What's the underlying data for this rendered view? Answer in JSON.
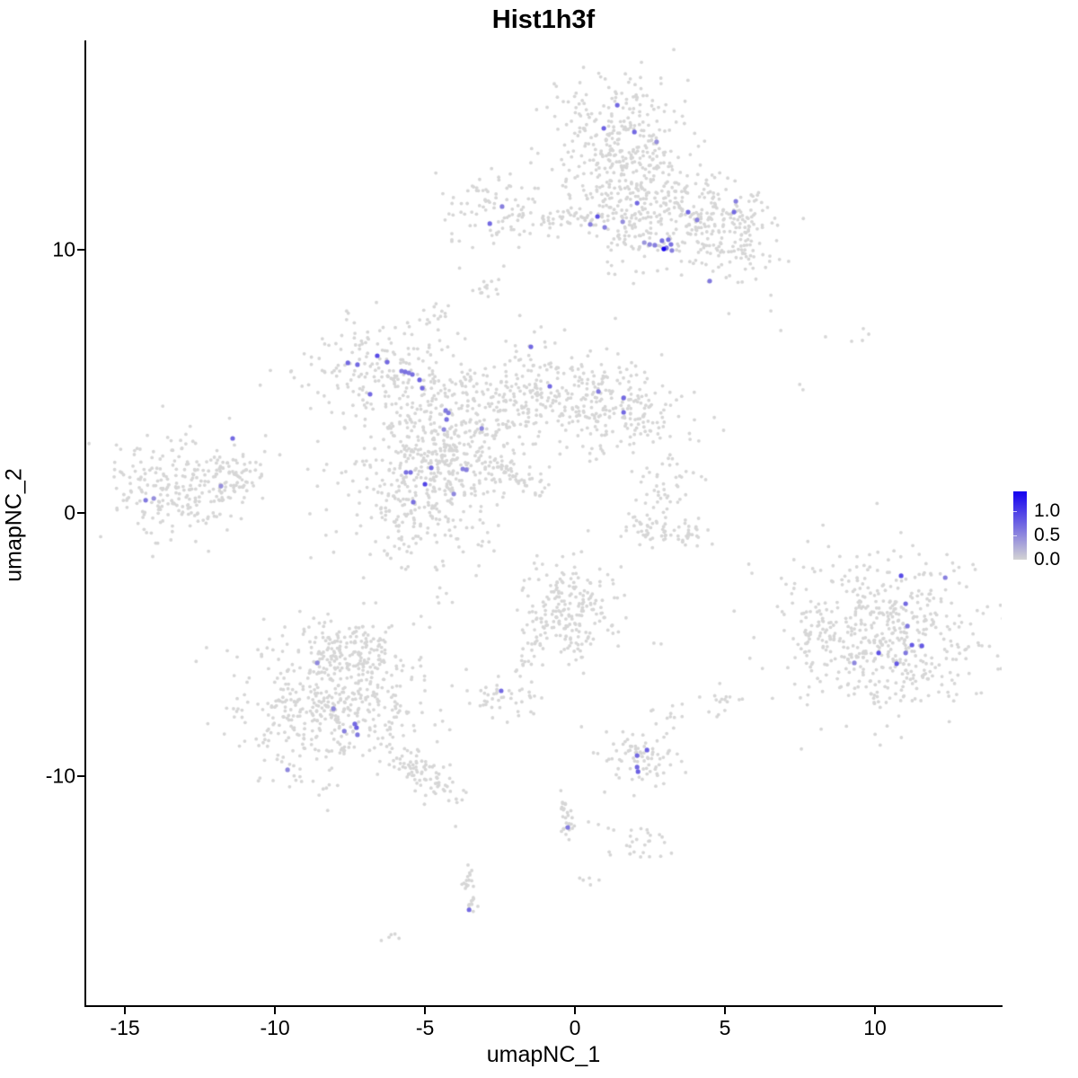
{
  "title": "Hist1h3f",
  "axes": {
    "x": {
      "label": "umapNC_1",
      "ticks": [
        -15,
        -10,
        -5,
        0,
        5,
        10
      ],
      "range": [
        -16.32,
        14.22
      ]
    },
    "y": {
      "label": "umapNC_2",
      "ticks": [
        -10,
        0,
        10
      ],
      "range": [
        -18.74,
        17.95
      ]
    }
  },
  "legend": {
    "tick_labels": [
      "1.0",
      "0.5",
      "0.0"
    ],
    "tick_values": [
      1.0,
      0.5,
      0.0
    ],
    "vmax": 1.4,
    "color_high": "#1400f0",
    "color_low": "#d3d3d3"
  },
  "chart_data": {
    "type": "scatter",
    "title": "Hist1h3f",
    "xlabel": "umapNC_1",
    "ylabel": "umapNC_2",
    "xlim": [
      -16.32,
      14.22
    ],
    "ylim": [
      -18.74,
      17.95
    ],
    "grid": false,
    "legend_position": "right",
    "background_color": "#d6d6d6",
    "point_radius_px": {
      "background": 1.9,
      "highlighted": 2.6
    },
    "gaussian_clusters": [
      {
        "name": "top-main",
        "cx": 1.4,
        "cy": 14.0,
        "sx": 1.1,
        "sy": 1.5,
        "n": 330
      },
      {
        "name": "top-neck",
        "cx": 1.9,
        "cy": 11.4,
        "sx": 0.85,
        "sy": 1.05,
        "n": 160
      },
      {
        "name": "top-arm-bulge",
        "cx": 5.0,
        "cy": 11.3,
        "sx": 0.85,
        "sy": 0.8,
        "n": 90
      },
      {
        "name": "upper-left-small",
        "cx": -2.45,
        "cy": 11.5,
        "sx": 1.0,
        "sy": 0.8,
        "n": 100
      },
      {
        "name": "below-upper-left",
        "cx": -2.87,
        "cy": 8.85,
        "sx": 0.28,
        "sy": 0.42,
        "n": 14
      },
      {
        "name": "mid-left-upper-lobe",
        "cx": -6.6,
        "cy": 5.3,
        "sx": 1.3,
        "sy": 0.95,
        "n": 190
      },
      {
        "name": "mid-central-node",
        "cx": -4.0,
        "cy": 3.1,
        "sx": 1.15,
        "sy": 1.4,
        "n": 260
      },
      {
        "name": "mid-right-arm-end",
        "cx": 1.85,
        "cy": 4.0,
        "sx": 1.1,
        "sy": 1.05,
        "n": 130
      },
      {
        "name": "mid-vertical-spur",
        "cx": -1.35,
        "cy": 5.3,
        "sx": 0.55,
        "sy": 0.95,
        "n": 55
      },
      {
        "name": "mid-bottom-lobe",
        "cx": -5.2,
        "cy": 0.6,
        "sx": 1.5,
        "sy": 1.55,
        "n": 290
      },
      {
        "name": "mid-connector",
        "cx": -4.6,
        "cy": 2.0,
        "sx": 0.75,
        "sy": 0.75,
        "n": 80
      },
      {
        "name": "mid-tiny-top",
        "cx": -4.6,
        "cy": 7.5,
        "sx": 0.3,
        "sy": 0.35,
        "n": 14
      },
      {
        "name": "far-left-main",
        "cx": -13.2,
        "cy": 1.05,
        "sx": 1.25,
        "sy": 1.05,
        "n": 240
      },
      {
        "name": "far-left-tip",
        "cx": -11.4,
        "cy": 1.35,
        "sx": 0.65,
        "sy": 0.5,
        "n": 55
      },
      {
        "name": "center-right-top",
        "cx": 3.0,
        "cy": 0.82,
        "sx": 0.55,
        "sy": 0.6,
        "n": 40
      },
      {
        "name": "bottom-right-main",
        "cx": 10.3,
        "cy": -4.6,
        "sx": 1.6,
        "sy": 1.5,
        "n": 520
      },
      {
        "name": "bottom-right-west",
        "cx": 7.87,
        "cy": -4.5,
        "sx": 0.4,
        "sy": 0.55,
        "n": 30
      },
      {
        "name": "bottom-left-main",
        "cx": -8.2,
        "cy": -7.3,
        "sx": 1.5,
        "sy": 1.4,
        "n": 480
      },
      {
        "name": "bottom-left-top-lobe",
        "cx": -7.5,
        "cy": -5.3,
        "sx": 0.85,
        "sy": 0.65,
        "n": 130
      },
      {
        "name": "center-bottom",
        "cx": -0.1,
        "cy": -3.7,
        "sx": 0.8,
        "sy": 1.0,
        "n": 210
      },
      {
        "name": "small-left-bottom",
        "cx": -2.45,
        "cy": -6.95,
        "sx": 0.55,
        "sy": 0.4,
        "n": 42
      },
      {
        "name": "small-mid-bottom",
        "cx": 2.25,
        "cy": -9.2,
        "sx": 0.75,
        "sy": 0.7,
        "n": 85
      },
      {
        "name": "streak-side-blob",
        "cx": 2.15,
        "cy": -12.6,
        "sx": 0.42,
        "sy": 0.3,
        "n": 26
      },
      {
        "name": "tiny-below-streak",
        "cx": 0.54,
        "cy": -14.03,
        "sx": 0.15,
        "sy": 0.12,
        "n": 5
      },
      {
        "name": "tiny-bottom",
        "cx": -6.05,
        "cy": -16.1,
        "sx": 0.18,
        "sy": 0.12,
        "n": 5
      },
      {
        "name": "tiny-right-1",
        "cx": 4.8,
        "cy": -7.2,
        "sx": 0.3,
        "sy": 0.28,
        "n": 16
      },
      {
        "name": "tiny-right-2",
        "cx": 3.3,
        "cy": -7.5,
        "sx": 0.18,
        "sy": 0.15,
        "n": 6
      }
    ],
    "line_clusters": [
      {
        "name": "top-right-arm",
        "x0": 2.8,
        "y0": 12.5,
        "x1": 5.9,
        "y1": 9.6,
        "w": 0.75,
        "n": 200
      },
      {
        "name": "top-band",
        "x0": -1.3,
        "y0": 11.3,
        "x1": 0.7,
        "y1": 11.2,
        "w": 0.14,
        "n": 30
      },
      {
        "name": "mid-right-arm",
        "x0": -3.0,
        "y0": 4.0,
        "x1": 1.6,
        "y1": 4.2,
        "w": 0.75,
        "n": 230
      },
      {
        "name": "diag-streak",
        "x0": -2.6,
        "y0": 2.0,
        "x1": -1.15,
        "y1": 0.6,
        "w": 0.1,
        "n": 40
      },
      {
        "name": "center-right-arc-a",
        "x0": 1.85,
        "y0": -0.35,
        "x1": 3.0,
        "y1": -0.9,
        "w": 0.25,
        "n": 35
      },
      {
        "name": "center-right-arc-b",
        "x0": 3.0,
        "y0": -0.9,
        "x1": 4.35,
        "y1": -0.7,
        "w": 0.25,
        "n": 35
      },
      {
        "name": "bottom-left-arm",
        "x0": -6.0,
        "y0": -9.2,
        "x1": -3.9,
        "y1": -10.6,
        "w": 0.35,
        "n": 80
      },
      {
        "name": "center-bottom-tail",
        "x0": -1.1,
        "y0": -4.5,
        "x1": -1.85,
        "y1": -6.0,
        "w": 0.15,
        "n": 20
      },
      {
        "name": "vert-streak-upper",
        "x0": -0.37,
        "y0": -10.6,
        "x1": -0.13,
        "y1": -12.3,
        "w": 0.12,
        "n": 28
      },
      {
        "name": "vert-streak-lower",
        "x0": -3.6,
        "y0": -13.6,
        "x1": -3.4,
        "y1": -15.3,
        "w": 0.14,
        "n": 26
      }
    ],
    "extra_grey_points": [
      [
        6.86,
        6.93
      ],
      [
        8.35,
        6.69
      ],
      [
        9.22,
        6.52
      ],
      [
        9.58,
        6.55
      ],
      [
        9.61,
        7.0
      ],
      [
        9.79,
        6.79
      ],
      [
        7.49,
        4.88
      ],
      [
        7.6,
        4.68
      ],
      [
        -1.35,
        -6.96
      ],
      [
        -1.11,
        -7.03
      ],
      [
        2.63,
        -4.95
      ],
      [
        2.87,
        -4.98
      ],
      [
        0.45,
        -11.74
      ],
      [
        0.78,
        -11.84
      ],
      [
        1.11,
        -11.98
      ],
      [
        1.29,
        -12.05
      ],
      [
        -3.98,
        -11.91
      ],
      [
        -3.44,
        11.43
      ]
    ],
    "expressing_cells": [
      {
        "x": 1.41,
        "y": 15.49,
        "value": 0.7
      },
      {
        "x": 0.96,
        "y": 14.61,
        "value": 0.75
      },
      {
        "x": 1.98,
        "y": 14.47,
        "value": 0.7
      },
      {
        "x": 2.72,
        "y": 14.1,
        "value": 0.45
      },
      {
        "x": 2.07,
        "y": 11.77,
        "value": 0.7
      },
      {
        "x": 0.75,
        "y": 11.26,
        "value": 0.85
      },
      {
        "x": 0.51,
        "y": 10.96,
        "value": 0.55
      },
      {
        "x": 0.99,
        "y": 10.85,
        "value": 0.55
      },
      {
        "x": 1.59,
        "y": 11.06,
        "value": 0.45
      },
      {
        "x": 3.77,
        "y": 11.43,
        "value": 0.7
      },
      {
        "x": 4.07,
        "y": 11.13,
        "value": 0.55
      },
      {
        "x": 5.3,
        "y": 11.43,
        "value": 0.7
      },
      {
        "x": 5.36,
        "y": 11.84,
        "value": 0.55
      },
      {
        "x": 4.49,
        "y": 8.81,
        "value": 0.6
      },
      {
        "x": 2.31,
        "y": 10.27,
        "value": 0.4
      },
      {
        "x": 2.49,
        "y": 10.2,
        "value": 0.5
      },
      {
        "x": 2.66,
        "y": 10.17,
        "value": 0.55
      },
      {
        "x": 2.9,
        "y": 10.34,
        "value": 0.65
      },
      {
        "x": 3.11,
        "y": 10.38,
        "value": 0.65
      },
      {
        "x": 3.2,
        "y": 10.2,
        "value": 0.65
      },
      {
        "x": 3.05,
        "y": 10.07,
        "value": 0.6
      },
      {
        "x": 2.96,
        "y": 10.03,
        "value": 1.4
      },
      {
        "x": 3.23,
        "y": 9.97,
        "value": 0.55
      },
      {
        "x": -2.43,
        "y": 11.64,
        "value": 0.55
      },
      {
        "x": -2.84,
        "y": 10.99,
        "value": 0.7
      },
      {
        "x": -6.59,
        "y": 5.97,
        "value": 0.9
      },
      {
        "x": -7.57,
        "y": 5.7,
        "value": 0.7
      },
      {
        "x": -7.25,
        "y": 5.63,
        "value": 0.7
      },
      {
        "x": -6.26,
        "y": 5.73,
        "value": 0.7
      },
      {
        "x": -5.78,
        "y": 5.39,
        "value": 0.6
      },
      {
        "x": -5.66,
        "y": 5.36,
        "value": 0.65
      },
      {
        "x": -5.54,
        "y": 5.32,
        "value": 0.6
      },
      {
        "x": -5.42,
        "y": 5.26,
        "value": 0.65
      },
      {
        "x": -5.18,
        "y": 5.05,
        "value": 0.75
      },
      {
        "x": -5.09,
        "y": 4.74,
        "value": 0.7
      },
      {
        "x": -6.83,
        "y": 4.51,
        "value": 0.7
      },
      {
        "x": -4.31,
        "y": 3.89,
        "value": 0.6
      },
      {
        "x": -4.22,
        "y": 3.8,
        "value": 0.6
      },
      {
        "x": -4.28,
        "y": 3.55,
        "value": 0.65
      },
      {
        "x": -4.37,
        "y": 3.17,
        "value": 0.5
      },
      {
        "x": -3.11,
        "y": 3.21,
        "value": 0.5
      },
      {
        "x": -1.47,
        "y": 6.31,
        "value": 0.7
      },
      {
        "x": -0.84,
        "y": 4.81,
        "value": 0.7
      },
      {
        "x": 0.78,
        "y": 4.61,
        "value": 0.6
      },
      {
        "x": 1.62,
        "y": 4.37,
        "value": 0.7
      },
      {
        "x": 1.62,
        "y": 3.82,
        "value": 0.7
      },
      {
        "x": -4.79,
        "y": 1.71,
        "value": 0.7
      },
      {
        "x": -5.63,
        "y": 1.54,
        "value": 0.65
      },
      {
        "x": -5.48,
        "y": 1.54,
        "value": 0.65
      },
      {
        "x": -5.0,
        "y": 1.09,
        "value": 0.95
      },
      {
        "x": -4.04,
        "y": 0.72,
        "value": 0.5
      },
      {
        "x": -3.74,
        "y": 1.67,
        "value": 0.55
      },
      {
        "x": -3.62,
        "y": 1.64,
        "value": 0.55
      },
      {
        "x": -5.39,
        "y": 0.41,
        "value": 0.65
      },
      {
        "x": -11.41,
        "y": 2.83,
        "value": 0.7
      },
      {
        "x": -11.8,
        "y": 1.02,
        "value": 0.45
      },
      {
        "x": -14.31,
        "y": 0.48,
        "value": 0.6
      },
      {
        "x": -14.04,
        "y": 0.55,
        "value": 0.45
      },
      {
        "x": -8.59,
        "y": -5.7,
        "value": 0.5
      },
      {
        "x": -8.05,
        "y": -7.44,
        "value": 0.5
      },
      {
        "x": -7.34,
        "y": -8.02,
        "value": 0.7
      },
      {
        "x": -7.28,
        "y": -8.16,
        "value": 0.75
      },
      {
        "x": -7.69,
        "y": -8.29,
        "value": 0.55
      },
      {
        "x": -7.25,
        "y": -8.43,
        "value": 0.6
      },
      {
        "x": -9.58,
        "y": -9.76,
        "value": 0.5
      },
      {
        "x": 10.87,
        "y": -2.39,
        "value": 0.9
      },
      {
        "x": 12.34,
        "y": -2.46,
        "value": 0.55
      },
      {
        "x": 11.02,
        "y": -3.45,
        "value": 0.7
      },
      {
        "x": 11.08,
        "y": -4.3,
        "value": 0.6
      },
      {
        "x": 11.23,
        "y": -5.02,
        "value": 0.8
      },
      {
        "x": 11.56,
        "y": -5.05,
        "value": 0.8
      },
      {
        "x": 10.12,
        "y": -5.32,
        "value": 0.85
      },
      {
        "x": 11.02,
        "y": -5.32,
        "value": 0.6
      },
      {
        "x": 10.72,
        "y": -5.73,
        "value": 0.8
      },
      {
        "x": 9.31,
        "y": -5.7,
        "value": 0.5
      },
      {
        "x": -2.46,
        "y": -6.76,
        "value": 0.7
      },
      {
        "x": 2.4,
        "y": -9.01,
        "value": 0.75
      },
      {
        "x": 2.07,
        "y": -9.22,
        "value": 0.7
      },
      {
        "x": 2.07,
        "y": -9.66,
        "value": 0.7
      },
      {
        "x": 2.1,
        "y": -9.83,
        "value": 0.75
      },
      {
        "x": -0.24,
        "y": -11.95,
        "value": 0.6
      },
      {
        "x": -3.53,
        "y": -15.08,
        "value": 0.7
      }
    ]
  }
}
